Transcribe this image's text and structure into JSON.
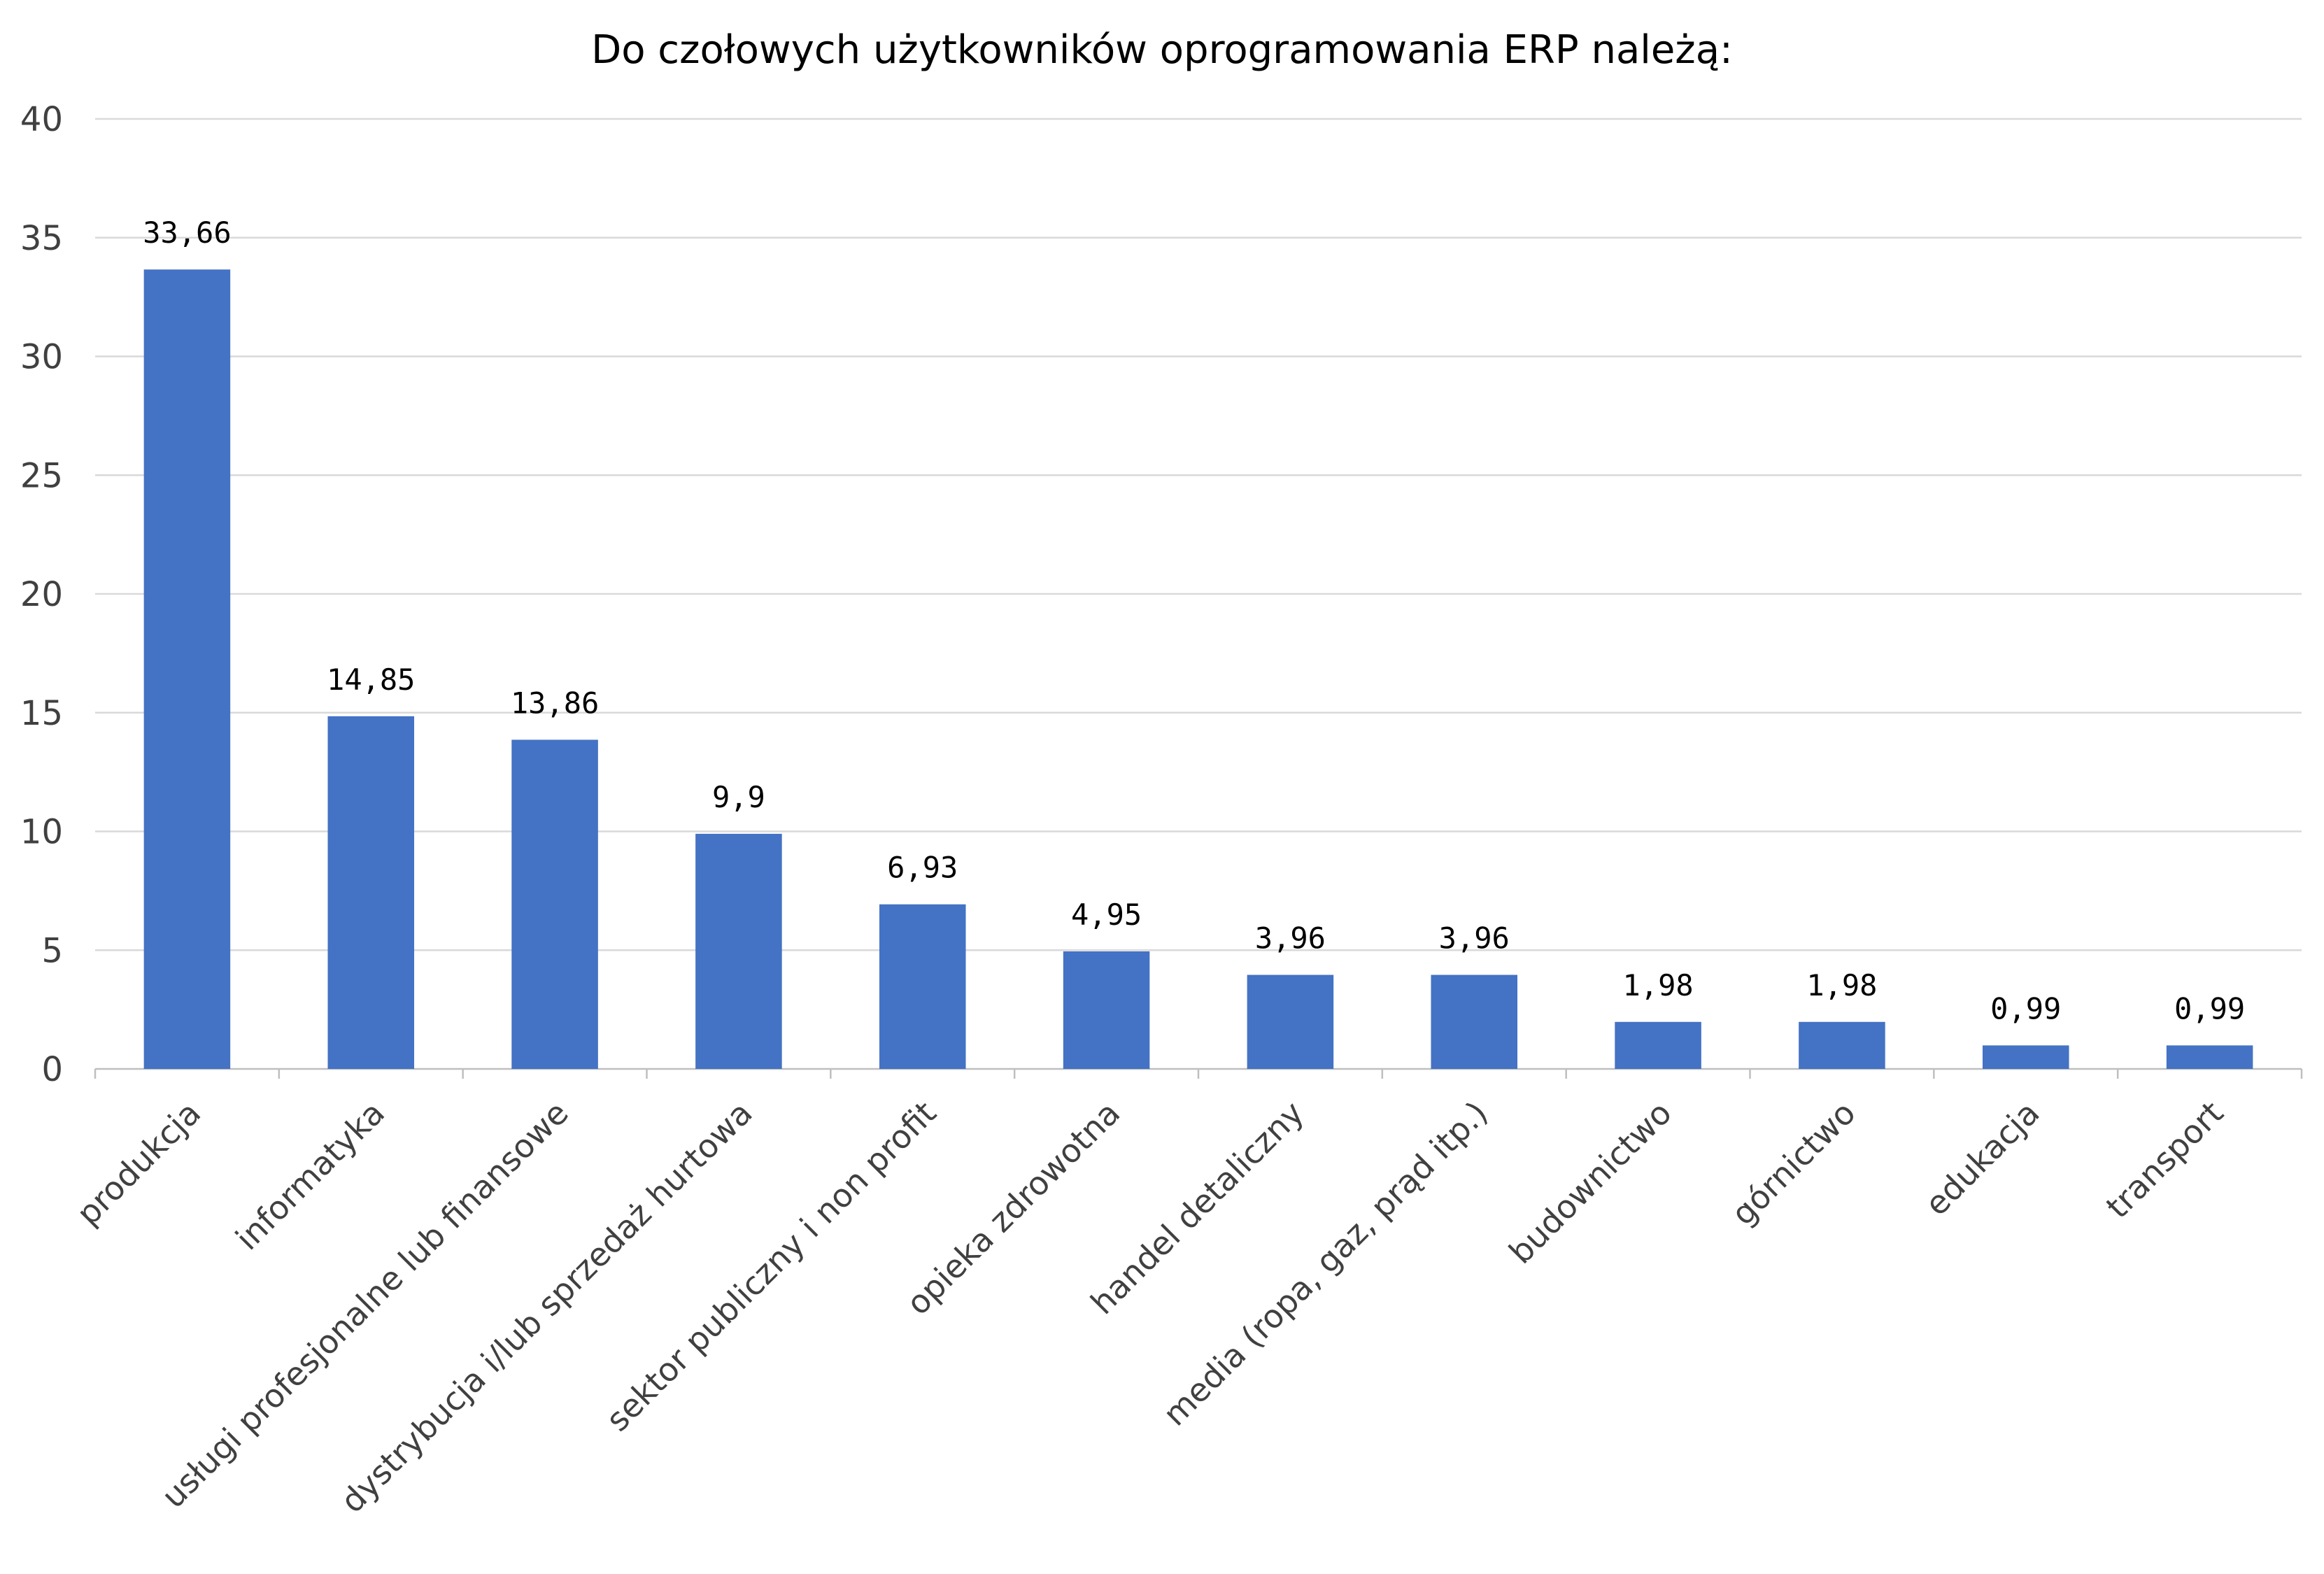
{
  "chart_data": {
    "type": "bar",
    "title": "Do czołowych użytkowników oprogramowania ERP należą:",
    "xlabel": "",
    "ylabel": "",
    "ylim": [
      0,
      40
    ],
    "yticks": [
      0,
      5,
      10,
      15,
      20,
      25,
      30,
      35,
      40
    ],
    "grid": true,
    "legend": "none",
    "color": "#4472C4",
    "categories": [
      "produkcja",
      "informatyka",
      "usługi profesjonalne lub finansowe",
      "dystrybucja i/lub sprzedaż hurtowa",
      "sektor publiczny i non profit",
      "opieka zdrowotna",
      "handel detaliczny",
      "media (ropa, gaz, prąd itp.)",
      "budownictwo",
      "górnictwo",
      "edukacja",
      "transport"
    ],
    "values": [
      33.66,
      14.85,
      13.86,
      9.9,
      6.93,
      4.95,
      3.96,
      3.96,
      1.98,
      1.98,
      0.99,
      0.99
    ],
    "data_labels": [
      "33,66",
      "14,85",
      "13,86",
      "9,9",
      "6,93",
      "4,95",
      "3,96",
      "3,96",
      "1,98",
      "1,98",
      "0,99",
      "0,99"
    ]
  }
}
